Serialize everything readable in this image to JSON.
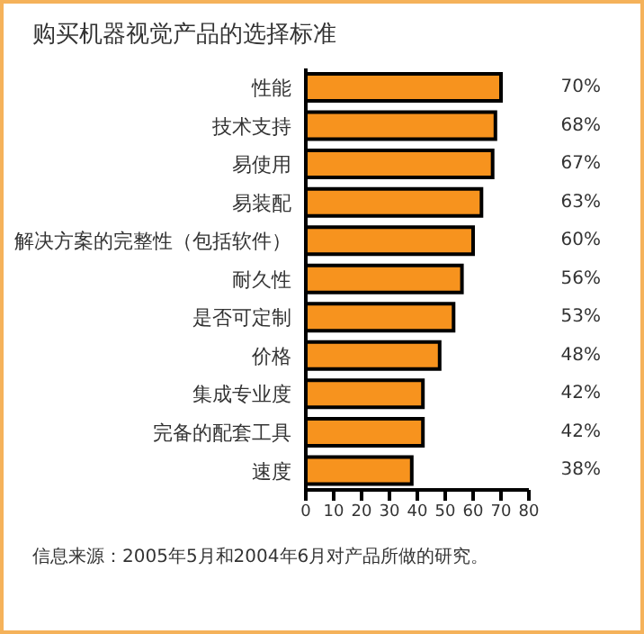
{
  "chart_data": {
    "type": "bar",
    "orientation": "horizontal",
    "title": "购买机器视觉产品的选择标准",
    "categories": [
      "性能",
      "技术支持",
      "易使用",
      "易装配",
      "解决方案的完整性（包括软件）",
      "耐久性",
      "是否可定制",
      "价格",
      "集成专业度",
      "完备的配套工具",
      "速度"
    ],
    "values": [
      70,
      68,
      67,
      63,
      60,
      56,
      53,
      48,
      42,
      42,
      38
    ],
    "value_labels": [
      "70%",
      "68%",
      "67%",
      "63%",
      "60%",
      "56%",
      "53%",
      "48%",
      "42%",
      "42%",
      "38%"
    ],
    "color": "#f7931e",
    "xlim": [
      0,
      80
    ],
    "xticks": [
      0,
      10,
      20,
      30,
      40,
      50,
      60,
      70,
      80
    ],
    "grid": false,
    "annotations": [
      "信息来源：2005年5月和2004年6月对产品所做的研究。"
    ]
  }
}
